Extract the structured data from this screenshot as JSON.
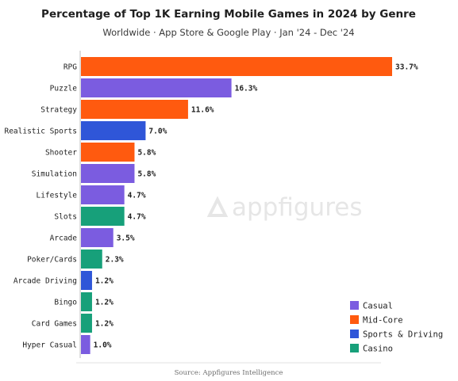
{
  "chart_data": {
    "type": "bar",
    "orientation": "horizontal",
    "title": "Percentage of Top 1K Earning Mobile Games in 2024 by Genre",
    "subtitle": "Worldwide · App Store & Google Play · Jan '24 - Dec '24",
    "categories": [
      "RPG",
      "Puzzle",
      "Strategy",
      "Realistic Sports",
      "Shooter",
      "Simulation",
      "Lifestyle",
      "Slots",
      "Arcade",
      "Poker/Cards",
      "Arcade Driving",
      "Bingo",
      "Card Games",
      "Hyper Casual"
    ],
    "values": [
      33.7,
      16.3,
      11.6,
      7.0,
      5.8,
      5.8,
      4.7,
      4.7,
      3.5,
      2.3,
      1.2,
      1.2,
      1.2,
      1.0
    ],
    "value_labels": [
      "33.7%",
      "16.3%",
      "11.6%",
      "7.0%",
      "5.8%",
      "5.8%",
      "4.7%",
      "4.7%",
      "3.5%",
      "2.3%",
      "1.2%",
      "1.2%",
      "1.2%",
      "1.0%"
    ],
    "group": [
      "Mid-Core",
      "Casual",
      "Mid-Core",
      "Sports & Driving",
      "Mid-Core",
      "Casual",
      "Casual",
      "Casino",
      "Casual",
      "Casino",
      "Sports & Driving",
      "Casino",
      "Casino",
      "Casual"
    ],
    "legend": [
      {
        "name": "Casual",
        "color": "#7b5ce0"
      },
      {
        "name": "Mid-Core",
        "color": "#ff5a0f"
      },
      {
        "name": "Sports & Driving",
        "color": "#2f56d8"
      },
      {
        "name": "Casino",
        "color": "#17a07a"
      }
    ],
    "legend_position": "bottom-right",
    "xlim": [
      0,
      33.7
    ],
    "grid": false
  },
  "watermark": "appfigures",
  "source": "Source: Appfigures Intelligence"
}
